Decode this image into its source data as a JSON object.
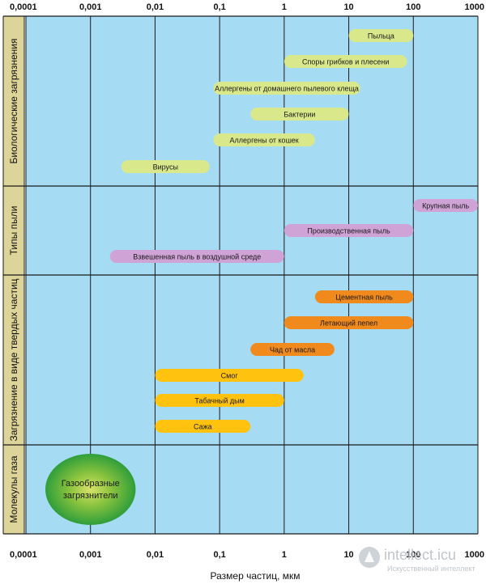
{
  "chart_data": {
    "type": "range-bar",
    "xlabel": "Размер частиц, мкм",
    "x_scale": "log",
    "xlim": [
      0.0001,
      1000
    ],
    "x_ticks": [
      "0,0001",
      "0,001",
      "0,01",
      "0,1",
      "1",
      "10",
      "100",
      "1000"
    ],
    "grid": true,
    "groups": [
      {
        "name": "Биологические загрязнения",
        "bars": [
          {
            "label": "Пыльца",
            "range": [
              10,
              100
            ],
            "color": "#d9e88a"
          },
          {
            "label": "Споры грибков и плесени",
            "range": [
              1,
              80
            ],
            "color": "#d9e88a"
          },
          {
            "label": "Аллергены от домашнего пылевого клеща",
            "range": [
              0.08,
              15
            ],
            "color": "#d9e88a"
          },
          {
            "label": "Бактерии",
            "range": [
              0.3,
              10
            ],
            "color": "#d9e88a"
          },
          {
            "label": "Аллергены от кошек",
            "range": [
              0.08,
              3
            ],
            "color": "#d9e88a"
          },
          {
            "label": "Вирусы",
            "range": [
              0.003,
              0.07
            ],
            "color": "#d9e88a"
          }
        ]
      },
      {
        "name": "Типы пыли",
        "bars": [
          {
            "label": "Крупная пыль",
            "range": [
              100,
              1000
            ],
            "color": "#cfa3d6"
          },
          {
            "label": "Производственная пыль",
            "range": [
              1,
              100
            ],
            "color": "#cfa3d6"
          },
          {
            "label": "Взвешенная пыль в воздушной среде",
            "range": [
              0.002,
              1
            ],
            "color": "#cfa3d6"
          }
        ]
      },
      {
        "name": "Загрязнение в виде твердых частиц",
        "bars": [
          {
            "label": "Цементная пыль",
            "range": [
              3,
              100
            ],
            "color": "#f18a1d"
          },
          {
            "label": "Летающий пепел",
            "range": [
              1,
              100
            ],
            "color": "#f18a1d"
          },
          {
            "label": "Чад от масла",
            "range": [
              0.3,
              6
            ],
            "color": "#f18a1d"
          },
          {
            "label": "Смог",
            "range": [
              0.01,
              2
            ],
            "color": "#ffc20e"
          },
          {
            "label": "Табачный дым",
            "range": [
              0.01,
              1
            ],
            "color": "#ffc20e"
          },
          {
            "label": "Сажа",
            "range": [
              0.01,
              0.3
            ],
            "color": "#ffc20e"
          }
        ]
      },
      {
        "name": "Молекулы газа",
        "bars": [
          {
            "label": "Газообразные загрязнители",
            "range": [
              0.0002,
              0.005
            ],
            "color": "#2f9e3a",
            "shape": "ellipse"
          }
        ]
      }
    ]
  },
  "colors": {
    "plot_bg": "#a6dcf3",
    "category_bg": "#dcd498",
    "grid": "#1a1a1a"
  },
  "watermark": {
    "brand": "intellect.icu",
    "tagline": "Искусственный интеллект"
  }
}
